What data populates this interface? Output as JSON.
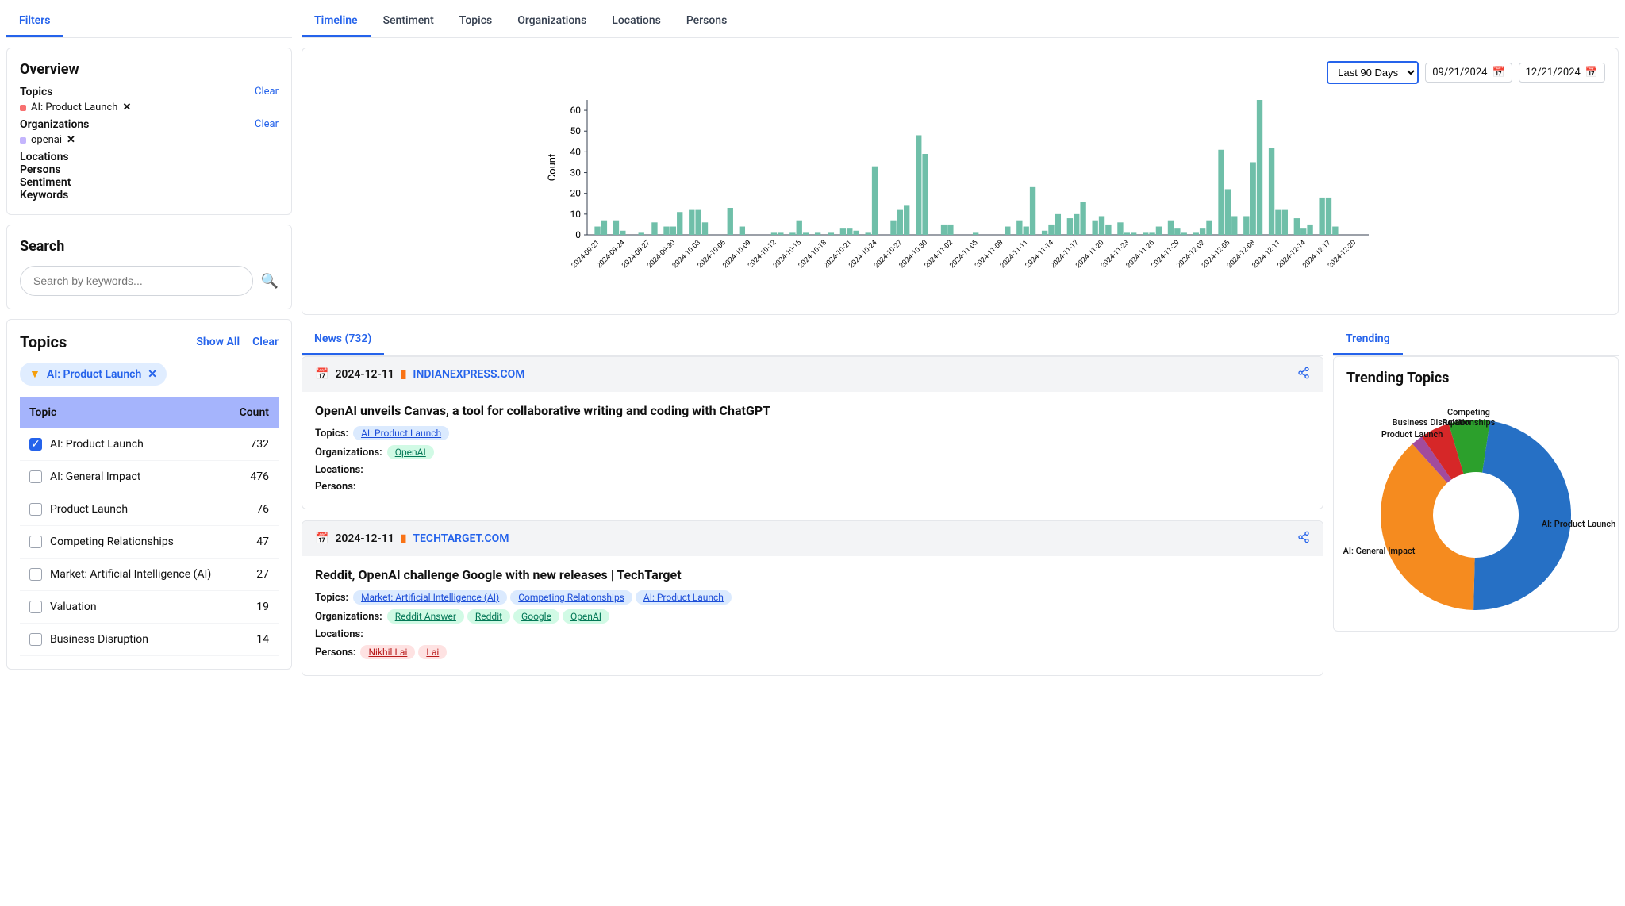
{
  "filters_tab": "Filters",
  "overview": {
    "title": "Overview",
    "sections": {
      "topics_label": "Topics",
      "organizations_label": "Organizations",
      "locations_label": "Locations",
      "persons_label": "Persons",
      "sentiment_label": "Sentiment",
      "keywords_label": "Keywords"
    },
    "clear_label": "Clear",
    "topic_chip": {
      "text": "AI: Product Launch",
      "color": "#f87171"
    },
    "org_chip": {
      "text": "openai",
      "color": "#c4b5fd"
    }
  },
  "search": {
    "title": "Search",
    "placeholder": "Search by keywords..."
  },
  "topics_panel": {
    "title": "Topics",
    "show_all": "Show All",
    "clear": "Clear",
    "active_chip": "AI: Product Launch",
    "header_topic": "Topic",
    "header_count": "Count",
    "rows": [
      {
        "name": "AI: Product Launch",
        "count": 732,
        "checked": true
      },
      {
        "name": "AI: General Impact",
        "count": 476,
        "checked": false
      },
      {
        "name": "Product Launch",
        "count": 76,
        "checked": false
      },
      {
        "name": "Competing Relationships",
        "count": 47,
        "checked": false
      },
      {
        "name": "Market: Artificial Intelligence (AI)",
        "count": 27,
        "checked": false
      },
      {
        "name": "Valuation",
        "count": 19,
        "checked": false
      },
      {
        "name": "Business Disruption",
        "count": 14,
        "checked": false
      }
    ]
  },
  "main_tabs": [
    "Timeline",
    "Sentiment",
    "Topics",
    "Organizations",
    "Locations",
    "Persons"
  ],
  "main_tabs_active": 0,
  "date_range": {
    "selector": "Last 90 Days",
    "from": "09/21/2024",
    "to": "12/21/2024"
  },
  "timeline_chart": {
    "type": "bar",
    "ylabel": "Count",
    "ylim": [
      0,
      65
    ],
    "ytick_step": 10,
    "bar_color": "#6fbfa9",
    "grid_color": "#e5e7eb",
    "label_fontsize": 9,
    "categories": [
      "2024-09-21",
      "2024-09-24",
      "2024-09-27",
      "2024-09-30",
      "2024-10-03",
      "2024-10-06",
      "2024-10-09",
      "2024-10-12",
      "2024-10-15",
      "2024-10-18",
      "2024-10-21",
      "2024-10-24",
      "2024-10-27",
      "2024-10-30",
      "2024-11-02",
      "2024-11-05",
      "2024-11-08",
      "2024-11-11",
      "2024-11-14",
      "2024-11-17",
      "2024-11-20",
      "2024-11-23",
      "2024-11-26",
      "2024-11-29",
      "2024-12-02",
      "2024-12-05",
      "2024-12-08",
      "2024-12-11",
      "2024-12-14",
      "2024-12-17",
      "2024-12-20"
    ],
    "values_per_cat": [
      [
        0,
        4,
        7
      ],
      [
        7,
        2,
        0
      ],
      [
        1,
        0,
        6
      ],
      [
        4,
        4,
        11
      ],
      [
        12,
        12,
        6
      ],
      [
        0,
        0,
        13
      ],
      [
        4,
        0,
        0
      ],
      [
        0,
        1,
        1
      ],
      [
        1,
        7,
        1
      ],
      [
        1,
        0,
        1
      ],
      [
        3,
        3,
        2
      ],
      [
        1,
        33,
        0
      ],
      [
        7,
        12,
        14
      ],
      [
        48,
        39,
        0
      ],
      [
        5,
        5,
        0
      ],
      [
        0,
        1,
        0
      ],
      [
        0,
        0,
        4
      ],
      [
        7,
        4,
        23
      ],
      [
        2,
        5,
        10
      ],
      [
        8,
        10,
        16
      ],
      [
        7,
        9,
        5
      ],
      [
        6,
        1,
        1
      ],
      [
        1,
        1,
        4
      ],
      [
        7,
        3,
        1
      ],
      [
        1,
        3,
        7
      ],
      [
        41,
        22,
        9
      ],
      [
        9,
        35,
        65
      ],
      [
        42,
        12,
        12
      ],
      [
        8,
        3,
        5
      ],
      [
        18,
        18,
        4
      ],
      [
        0,
        0,
        0
      ]
    ]
  },
  "news": {
    "tab_label": "News (732)",
    "articles": [
      {
        "date": "2024-12-11",
        "source": "INDIANEXPRESS.COM",
        "title": "OpenAI unveils Canvas, a tool for collaborative writing and coding with ChatGPT",
        "topics_label": "Topics:",
        "orgs_label": "Organizations:",
        "locs_label": "Locations:",
        "persons_label": "Persons:",
        "topics": [
          "AI: Product Launch"
        ],
        "orgs": [
          "OpenAI"
        ],
        "locs": [],
        "persons": []
      },
      {
        "date": "2024-12-11",
        "source": "TECHTARGET.COM",
        "title": "Reddit, OpenAI challenge Google with new releases | TechTarget",
        "topics_label": "Topics:",
        "orgs_label": "Organizations:",
        "locs_label": "Locations:",
        "persons_label": "Persons:",
        "topics": [
          "Market: Artificial Intelligence (AI)",
          "Competing Relationships",
          "AI: Product Launch"
        ],
        "orgs": [
          "Reddit Answer",
          "Reddit",
          "Google",
          "OpenAI"
        ],
        "locs": [],
        "persons": [
          "Nikhil Lai",
          "Lai"
        ]
      }
    ]
  },
  "trending": {
    "tab_label": "Trending",
    "title": "Trending Topics",
    "donut": {
      "type": "donut",
      "inner_radius_pct": 0.45,
      "slices": [
        {
          "label": "AI: Product Launch",
          "value": 48,
          "color": "#2670c5"
        },
        {
          "label": "AI: General Impact",
          "value": 38,
          "color": "#f58b1f"
        },
        {
          "label": "Product Launch",
          "value": 2,
          "color": "#a24b9c"
        },
        {
          "label": "Business Disruption",
          "value": 5,
          "color": "#d62728"
        },
        {
          "label": "Competing Relationships",
          "value": 7,
          "color": "#2ca02c"
        }
      ]
    }
  }
}
